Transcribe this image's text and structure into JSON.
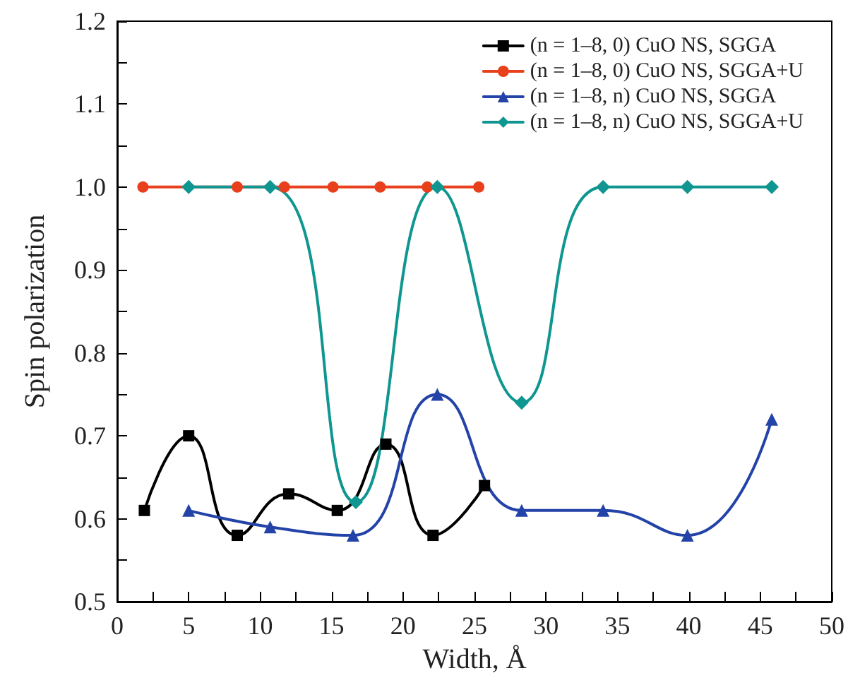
{
  "chart_data": {
    "type": "line",
    "xlabel": "Width, Å",
    "ylabel": "Spin polarization",
    "xlim": [
      0,
      50
    ],
    "xticks": [
      0,
      5,
      10,
      15,
      20,
      25,
      30,
      35,
      40,
      45,
      50
    ],
    "ylim": [
      0.5,
      1.2
    ],
    "yticks": [
      0.5,
      0.6,
      0.7,
      0.8,
      0.9,
      {
        "value": 1.0,
        "label": "1.0"
      },
      1.1,
      1.2
    ],
    "grid": false,
    "legend": "top right",
    "series": [
      {
        "name": "(n = 1–8, 0) CuO NS, SGGA",
        "color": "#000000",
        "marker": "square",
        "x": [
          1.9,
          5.0,
          8.4,
          12.0,
          15.4,
          18.8,
          22.1,
          25.7
        ],
        "values": [
          0.61,
          0.7,
          0.58,
          0.63,
          0.61,
          0.69,
          0.58,
          0.64
        ]
      },
      {
        "name": "(n = 1–8, 0) CuO NS, SGGA+U",
        "color": "#e8401c",
        "marker": "circle",
        "x": [
          1.8,
          8.4,
          11.7,
          15.1,
          18.4,
          21.7,
          25.3
        ],
        "values": [
          1.0,
          1.0,
          1.0,
          1.0,
          1.0,
          1.0,
          1.0
        ]
      },
      {
        "name": "(n = 1–8, n) CuO NS, SGGA",
        "color": "#2443a8",
        "marker": "triangle",
        "x": [
          5.0,
          10.7,
          16.5,
          22.4,
          28.3,
          34.0,
          39.9,
          45.8
        ],
        "values": [
          0.61,
          0.59,
          0.58,
          0.75,
          0.61,
          0.61,
          0.58,
          0.72
        ]
      },
      {
        "name": "(n = 1–8, n) CuO NS, SGGA+U",
        "color": "#0f9690",
        "marker": "diamond",
        "x": [
          5.0,
          10.7,
          16.7,
          22.4,
          28.3,
          34.0,
          39.9,
          45.8
        ],
        "values": [
          1.0,
          1.0,
          0.62,
          1.0,
          0.74,
          1.0,
          1.0,
          1.0
        ]
      }
    ]
  }
}
